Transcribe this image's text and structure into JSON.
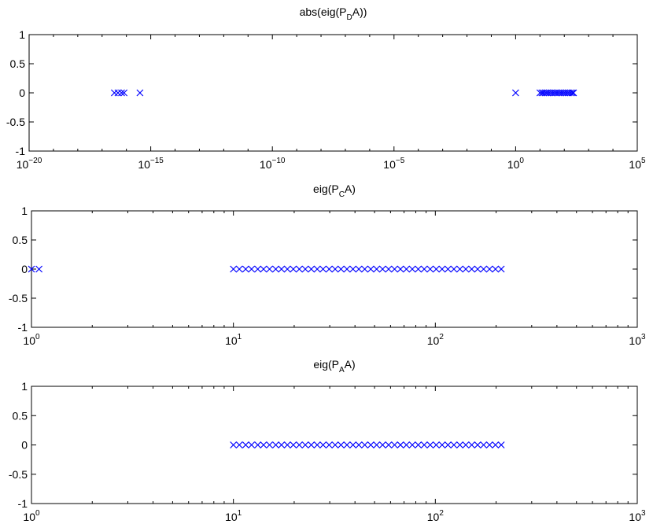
{
  "chart_data": [
    {
      "type": "scatter",
      "title": [
        "abs(eig(P",
        "D",
        "A))"
      ],
      "xscale": "log",
      "color": "#0000ff",
      "x": [
        3.2e-17,
        4.5e-17,
        6.3e-17,
        8e-17,
        3.6e-16,
        1,
        10,
        12,
        14,
        17,
        20,
        24,
        29,
        35,
        42,
        50,
        60,
        72,
        86,
        103,
        124,
        148,
        178,
        212,
        240
      ],
      "values": [
        0,
        0,
        0,
        0,
        0,
        0,
        0,
        0,
        0,
        0,
        0,
        0,
        0,
        0,
        0,
        0,
        0,
        0,
        0,
        0,
        0,
        0,
        0,
        0,
        0
      ],
      "xlim": [
        1e-20,
        100000.0
      ],
      "ylim": [
        -1,
        1
      ],
      "xticks": [
        {
          "value": 1e-20,
          "label": [
            "10",
            "−20"
          ]
        },
        {
          "value": 1e-15,
          "label": [
            "10",
            "−15"
          ]
        },
        {
          "value": 1e-10,
          "label": [
            "10",
            "−10"
          ]
        },
        {
          "value": 1e-05,
          "label": [
            "10",
            "−5"
          ]
        },
        {
          "value": 1,
          "label": [
            "10",
            "0"
          ]
        },
        {
          "value": 100000.0,
          "label": [
            "10",
            "5"
          ]
        }
      ],
      "xminor": [
        1e-19,
        1e-18,
        1e-17,
        1e-16,
        1e-14,
        1e-13,
        1e-12,
        1e-11,
        1e-09,
        1e-08,
        1e-07,
        1e-06,
        0.0001,
        0.001,
        0.01,
        0.1,
        10,
        100,
        1000,
        10000
      ],
      "yticks": [
        -1,
        -0.5,
        0,
        0.5,
        1
      ]
    },
    {
      "type": "scatter",
      "title": [
        "eig(P",
        "C",
        "A)"
      ],
      "xscale": "log",
      "color": "#0000ff",
      "x": [
        1,
        1.09,
        10,
        10.7,
        11.5,
        12.3,
        13.2,
        14.1,
        15.1,
        16.2,
        17.3,
        18.5,
        19.8,
        21.2,
        22.7,
        24.3,
        26,
        27.8,
        29.8,
        31.9,
        34.1,
        36.5,
        39.1,
        41.8,
        44.7,
        47.9,
        51.2,
        54.8,
        58.7,
        62.8,
        67.2,
        71.9,
        76.9,
        82.3,
        88.1,
        94.3,
        101,
        108,
        115.5,
        123.6,
        132.3,
        141.5,
        151.4,
        162,
        173.4,
        185.5,
        198.5,
        212
      ],
      "values": [
        0,
        0,
        0,
        0,
        0,
        0,
        0,
        0,
        0,
        0,
        0,
        0,
        0,
        0,
        0,
        0,
        0,
        0,
        0,
        0,
        0,
        0,
        0,
        0,
        0,
        0,
        0,
        0,
        0,
        0,
        0,
        0,
        0,
        0,
        0,
        0,
        0,
        0,
        0,
        0,
        0,
        0,
        0,
        0,
        0,
        0,
        0,
        0
      ],
      "xlim": [
        1,
        1000
      ],
      "ylim": [
        -1,
        1
      ],
      "xticks": [
        {
          "value": 1,
          "label": [
            "10",
            "0"
          ]
        },
        {
          "value": 10,
          "label": [
            "10",
            "1"
          ]
        },
        {
          "value": 100,
          "label": [
            "10",
            "2"
          ]
        },
        {
          "value": 1000,
          "label": [
            "10",
            "3"
          ]
        }
      ],
      "xminor": [
        2,
        3,
        4,
        5,
        6,
        7,
        8,
        9,
        20,
        30,
        40,
        50,
        60,
        70,
        80,
        90,
        200,
        300,
        400,
        500,
        600,
        700,
        800,
        900
      ],
      "yticks": [
        -1,
        -0.5,
        0,
        0.5,
        1
      ]
    },
    {
      "type": "scatter",
      "title": [
        "eig(P",
        "A",
        "A)"
      ],
      "xscale": "log",
      "color": "#0000ff",
      "x": [
        10,
        10.7,
        11.5,
        12.3,
        13.2,
        14.1,
        15.1,
        16.2,
        17.3,
        18.5,
        19.8,
        21.2,
        22.7,
        24.3,
        26,
        27.8,
        29.8,
        31.9,
        34.1,
        36.5,
        39.1,
        41.8,
        44.7,
        47.9,
        51.2,
        54.8,
        58.7,
        62.8,
        67.2,
        71.9,
        76.9,
        82.3,
        88.1,
        94.3,
        101,
        108,
        115.5,
        123.6,
        132.3,
        141.5,
        151.4,
        162,
        173.4,
        185.5,
        198.5,
        212
      ],
      "values": [
        0,
        0,
        0,
        0,
        0,
        0,
        0,
        0,
        0,
        0,
        0,
        0,
        0,
        0,
        0,
        0,
        0,
        0,
        0,
        0,
        0,
        0,
        0,
        0,
        0,
        0,
        0,
        0,
        0,
        0,
        0,
        0,
        0,
        0,
        0,
        0,
        0,
        0,
        0,
        0,
        0,
        0,
        0,
        0,
        0,
        0
      ],
      "xlim": [
        1,
        1000
      ],
      "ylim": [
        -1,
        1
      ],
      "xticks": [
        {
          "value": 1,
          "label": [
            "10",
            "0"
          ]
        },
        {
          "value": 10,
          "label": [
            "10",
            "1"
          ]
        },
        {
          "value": 100,
          "label": [
            "10",
            "2"
          ]
        },
        {
          "value": 1000,
          "label": [
            "10",
            "3"
          ]
        }
      ],
      "xminor": [
        2,
        3,
        4,
        5,
        6,
        7,
        8,
        9,
        20,
        30,
        40,
        50,
        60,
        70,
        80,
        90,
        200,
        300,
        400,
        500,
        600,
        700,
        800,
        900
      ],
      "yticks": [
        -1,
        -0.5,
        0,
        0.5,
        1
      ]
    }
  ]
}
